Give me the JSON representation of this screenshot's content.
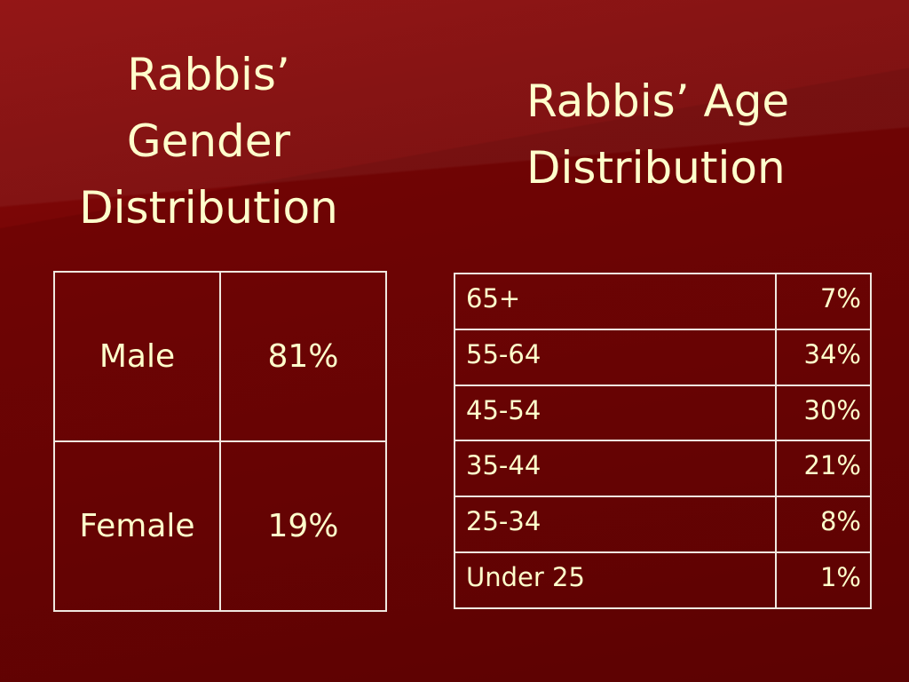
{
  "gender": {
    "title_lines": [
      "Rabbis’",
      "Gender",
      "Distribution"
    ],
    "table": {
      "rows": [
        [
          "Male",
          "81%"
        ],
        [
          "Female",
          "19%"
        ]
      ]
    }
  },
  "age": {
    "title_lines": [
      "Rabbis’ Age",
      "Distribution"
    ],
    "table": {
      "rows": [
        [
          "65+",
          "7%"
        ],
        [
          "55-64",
          "34%"
        ],
        [
          "45-54",
          "30%"
        ],
        [
          "35-44",
          "21%"
        ],
        [
          "25-34",
          "8%"
        ],
        [
          "Under 25",
          "1%"
        ]
      ]
    }
  }
}
